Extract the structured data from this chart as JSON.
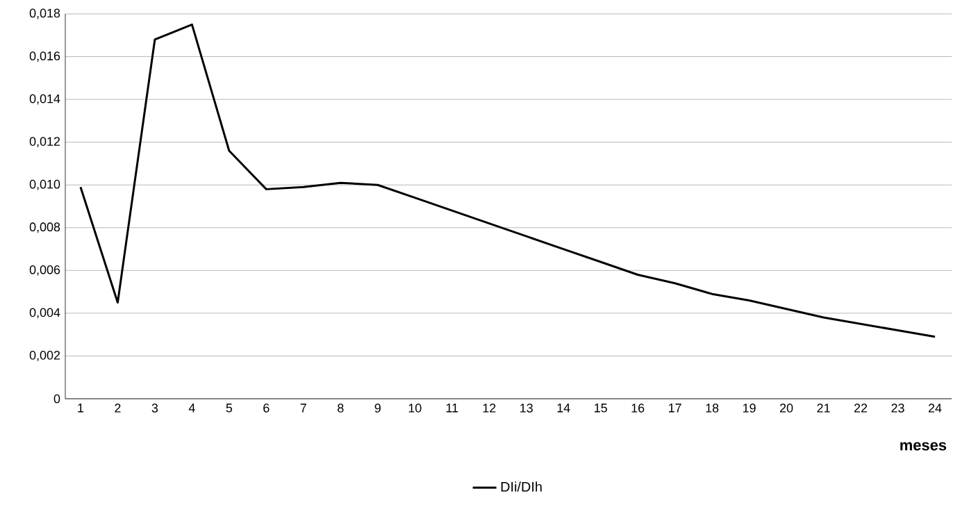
{
  "chart_data": {
    "type": "line",
    "xlabel": "meses",
    "categories": [
      "1",
      "2",
      "3",
      "4",
      "5",
      "6",
      "7",
      "8",
      "9",
      "10",
      "11",
      "12",
      "13",
      "14",
      "15",
      "16",
      "17",
      "18",
      "19",
      "20",
      "21",
      "22",
      "23",
      "24"
    ],
    "series": [
      {
        "name": "DIi/DIh",
        "color": "#000000",
        "values": [
          0.0099,
          0.0045,
          0.0168,
          0.0175,
          0.0116,
          0.0098,
          0.0099,
          0.0101,
          0.01,
          0.0094,
          0.0088,
          0.0082,
          0.0076,
          0.007,
          0.0064,
          0.0058,
          0.0054,
          0.0049,
          0.0046,
          0.0042,
          0.0038,
          0.0035,
          0.0032,
          0.0029
        ]
      }
    ],
    "ylim": [
      0,
      0.018
    ],
    "yticks": [
      0,
      {
        "value": 0.002,
        "label": "0,002"
      },
      {
        "value": 0.004,
        "label": "0,004"
      },
      {
        "value": 0.006,
        "label": "0,006"
      },
      {
        "value": 0.008,
        "label": "0,008"
      },
      {
        "value": 0.01,
        "label": "0,010"
      },
      {
        "value": 0.012,
        "label": "0,012"
      },
      {
        "value": 0.014,
        "label": "0,014"
      },
      {
        "value": 0.016,
        "label": "0,016"
      },
      {
        "value": 0.018,
        "label": "0,018"
      }
    ],
    "grid": "y",
    "legend": "bottom",
    "marker": "none",
    "line_style": "solid"
  }
}
